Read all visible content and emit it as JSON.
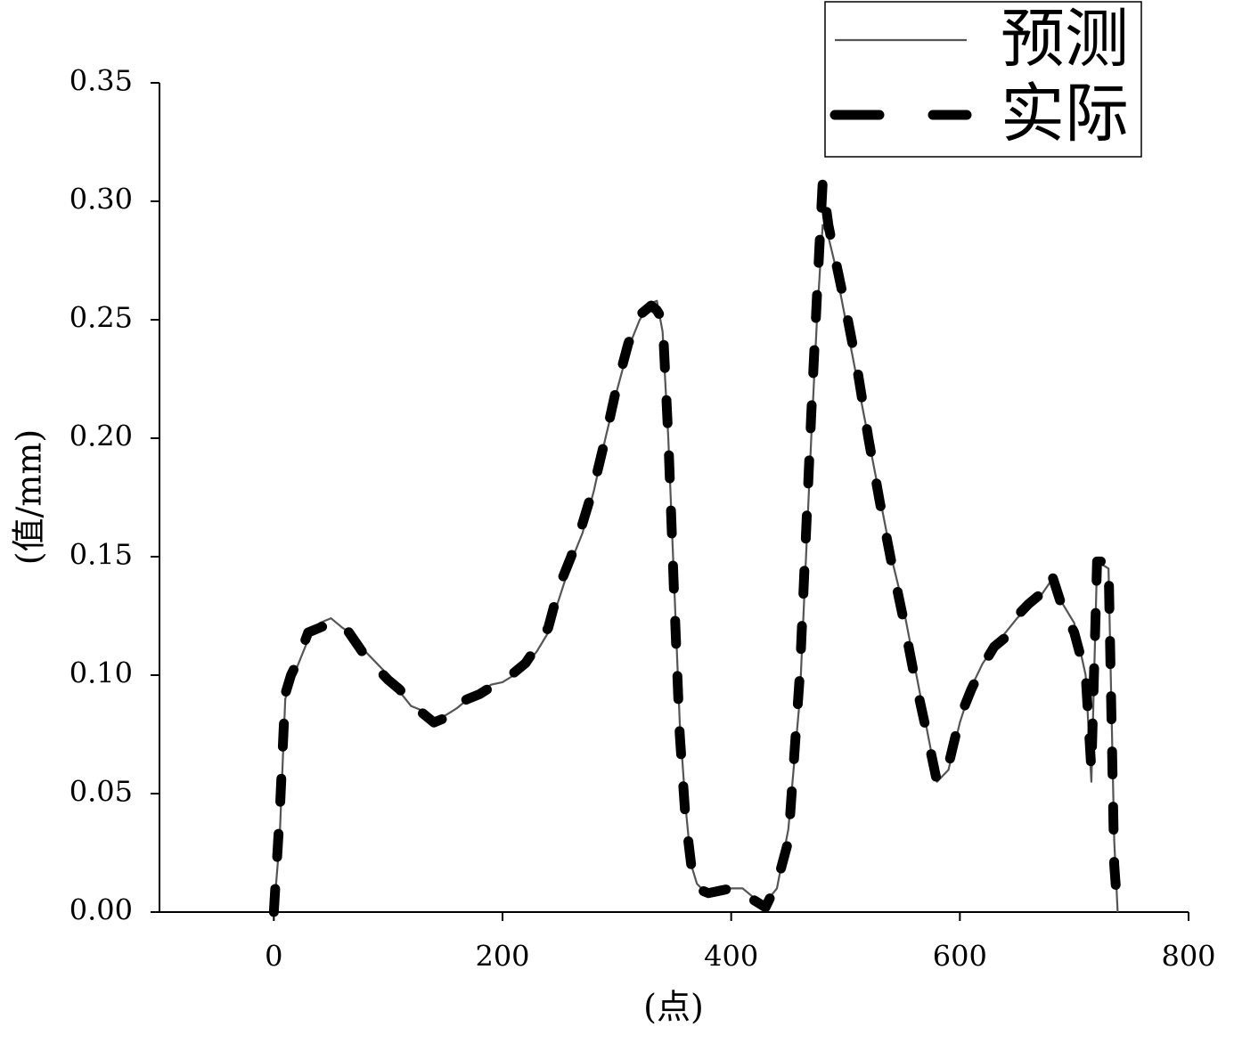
{
  "chart_data": {
    "type": "line",
    "xlabel": "(点)",
    "ylabel": "(值/mm)",
    "xlim": [
      -100,
      800
    ],
    "xticks": [
      0,
      200,
      400,
      600,
      800
    ],
    "ylim": [
      0,
      0.35
    ],
    "yticks": [
      {
        "value": 0,
        "label": "0.00"
      },
      {
        "value": 0.05,
        "label": "0.05"
      },
      {
        "value": 0.1,
        "label": "0.10"
      },
      {
        "value": 0.15,
        "label": "0.15"
      },
      {
        "value": 0.2,
        "label": "0.20"
      },
      {
        "value": 0.25,
        "label": "0.25"
      },
      {
        "value": 0.3,
        "label": "0.30"
      },
      {
        "value": 0.35,
        "label": "0.35"
      }
    ],
    "legend": "upper right",
    "x": [
      0,
      5,
      10,
      15,
      20,
      30,
      40,
      50,
      60,
      70,
      80,
      90,
      100,
      110,
      120,
      130,
      140,
      150,
      160,
      170,
      180,
      190,
      200,
      210,
      220,
      230,
      240,
      250,
      260,
      270,
      280,
      290,
      300,
      310,
      320,
      330,
      335,
      340,
      345,
      350,
      355,
      360,
      365,
      370,
      380,
      390,
      400,
      410,
      420,
      430,
      440,
      450,
      460,
      470,
      475,
      480,
      485,
      490,
      500,
      510,
      520,
      530,
      540,
      550,
      560,
      570,
      580,
      590,
      600,
      610,
      620,
      630,
      640,
      650,
      660,
      670,
      680,
      690,
      700,
      710,
      715,
      720,
      730,
      735,
      738
    ],
    "series": [
      {
        "name": "预测",
        "color": "#555555",
        "style": "solid",
        "values": [
          0,
          0.03,
          0.09,
          0.097,
          0.103,
          0.115,
          0.122,
          0.124,
          0.12,
          0.117,
          0.11,
          0.105,
          0.1,
          0.093,
          0.087,
          0.085,
          0.082,
          0.083,
          0.086,
          0.09,
          0.092,
          0.096,
          0.097,
          0.1,
          0.104,
          0.11,
          0.118,
          0.133,
          0.148,
          0.16,
          0.178,
          0.2,
          0.22,
          0.238,
          0.25,
          0.257,
          0.258,
          0.245,
          0.2,
          0.14,
          0.08,
          0.045,
          0.02,
          0.012,
          0.007,
          0.009,
          0.01,
          0.01,
          0.006,
          0.004,
          0.01,
          0.035,
          0.09,
          0.2,
          0.25,
          0.29,
          0.285,
          0.275,
          0.25,
          0.225,
          0.2,
          0.175,
          0.15,
          0.13,
          0.105,
          0.08,
          0.055,
          0.06,
          0.08,
          0.095,
          0.105,
          0.112,
          0.118,
          0.124,
          0.129,
          0.133,
          0.14,
          0.13,
          0.122,
          0.1,
          0.055,
          0.148,
          0.145,
          0.03,
          0
        ]
      },
      {
        "name": "实际",
        "color": "#000000",
        "style": "dashed",
        "values": [
          0,
          0.04,
          0.092,
          0.1,
          0.105,
          0.118,
          0.12,
          0.122,
          0.122,
          0.115,
          0.108,
          0.103,
          0.098,
          0.094,
          0.088,
          0.084,
          0.08,
          0.082,
          0.088,
          0.09,
          0.092,
          0.095,
          0.098,
          0.101,
          0.105,
          0.112,
          0.12,
          0.138,
          0.15,
          0.164,
          0.18,
          0.2,
          0.222,
          0.24,
          0.252,
          0.256,
          0.254,
          0.25,
          0.2,
          0.135,
          0.075,
          0.04,
          0.02,
          0.01,
          0.008,
          0.009,
          0.01,
          0.009,
          0.005,
          0.002,
          0.012,
          0.03,
          0.1,
          0.21,
          0.26,
          0.308,
          0.29,
          0.278,
          0.255,
          0.23,
          0.2,
          0.173,
          0.148,
          0.125,
          0.1,
          0.078,
          0.055,
          0.062,
          0.082,
          0.094,
          0.104,
          0.112,
          0.116,
          0.125,
          0.13,
          0.134,
          0.143,
          0.128,
          0.118,
          0.1,
          0.06,
          0.148,
          0.148,
          0.02,
          0
        ]
      }
    ]
  }
}
